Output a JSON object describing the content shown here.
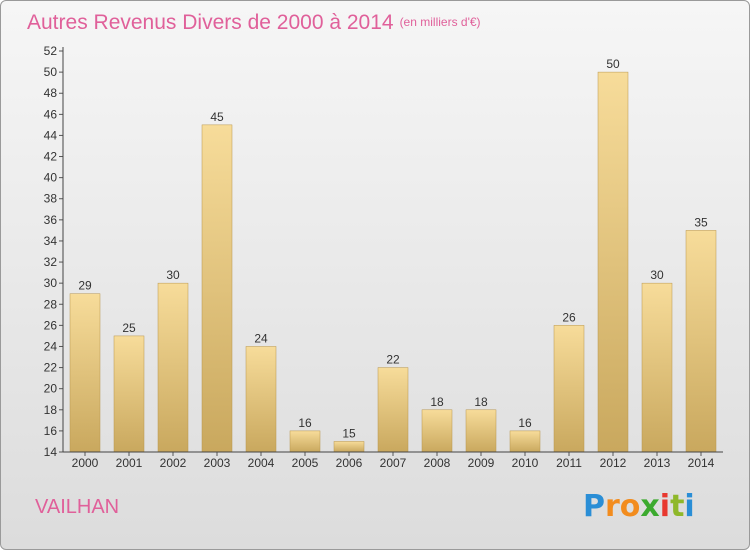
{
  "title": "Autres Revenus Divers de 2000 à 2014",
  "subtitle": "(en milliers d'€)",
  "commune": "VAILHAN",
  "logo": {
    "letters": [
      "P",
      "r",
      "o",
      "x",
      "i",
      "t",
      "i"
    ],
    "colors": [
      "#2a8ed6",
      "#f28c1e",
      "#f28c1e",
      "#3caa2f",
      "#e8382f",
      "#8fb82a",
      "#2a8ed6"
    ]
  },
  "chart_data": {
    "type": "bar",
    "categories": [
      "2000",
      "2001",
      "2002",
      "2003",
      "2004",
      "2005",
      "2006",
      "2007",
      "2008",
      "2009",
      "2010",
      "2011",
      "2012",
      "2013",
      "2014"
    ],
    "values": [
      29,
      25,
      30,
      45,
      24,
      16,
      15,
      22,
      18,
      18,
      16,
      26,
      50,
      30,
      35
    ],
    "ylim": [
      14,
      52
    ],
    "yticks": [
      14,
      16,
      18,
      20,
      22,
      24,
      26,
      28,
      30,
      32,
      34,
      36,
      38,
      40,
      42,
      44,
      46,
      48,
      50,
      52
    ],
    "grid": false,
    "bar_color": "#e8c878"
  }
}
